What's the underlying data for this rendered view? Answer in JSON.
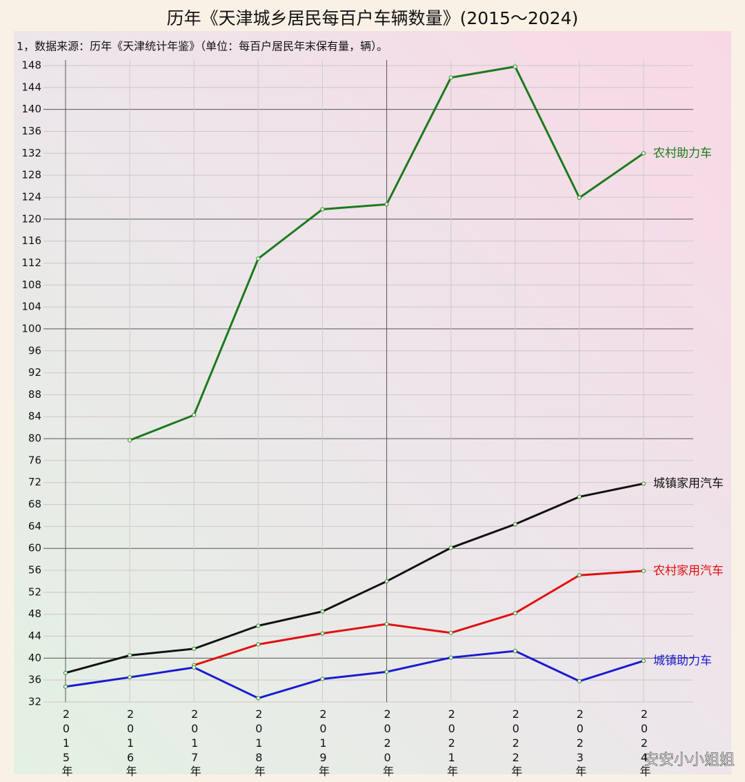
{
  "chart_data": {
    "type": "line",
    "title": "历年《天津城乡居民每百户车辆数量》(2015～2024)",
    "subtitle": "1，数据来源：历年《天津统计年鉴》（单位：每百户居民年末保有量，辆）。",
    "categories": [
      "2015年",
      "2016年",
      "2017年",
      "2018年",
      "2019年",
      "2020年",
      "2021年",
      "2022年",
      "2023年",
      "2024年"
    ],
    "series": [
      {
        "name": "农村助力车",
        "color": "#1a7a1a",
        "values": [
          null,
          79.7,
          84.3,
          112.8,
          121.8,
          122.7,
          145.8,
          147.8,
          123.9,
          132
        ]
      },
      {
        "name": "城镇家用汽车",
        "color": "#111111",
        "values": [
          37.3,
          40.5,
          41.7,
          45.9,
          48.5,
          54.0,
          60.1,
          64.4,
          69.4,
          71.8
        ]
      },
      {
        "name": "农村家用汽车",
        "color": "#e01010",
        "values": [
          null,
          null,
          38.7,
          42.5,
          44.5,
          46.2,
          44.6,
          48.2,
          55.1,
          55.9
        ]
      },
      {
        "name": "城镇助力车",
        "color": "#1a1ad0",
        "values": [
          34.8,
          36.5,
          38.3,
          32.7,
          36.2,
          37.5,
          40.1,
          41.3,
          35.8,
          39.5
        ]
      }
    ],
    "ylim": [
      32,
      148
    ],
    "yticks": [
      32,
      36,
      40,
      44,
      48,
      52,
      56,
      60,
      64,
      68,
      72,
      76,
      80,
      84,
      88,
      92,
      96,
      100,
      104,
      108,
      112,
      116,
      120,
      124,
      128,
      132,
      136,
      140,
      144,
      148
    ],
    "grid": true,
    "watermark": "安安小小姐姐"
  }
}
